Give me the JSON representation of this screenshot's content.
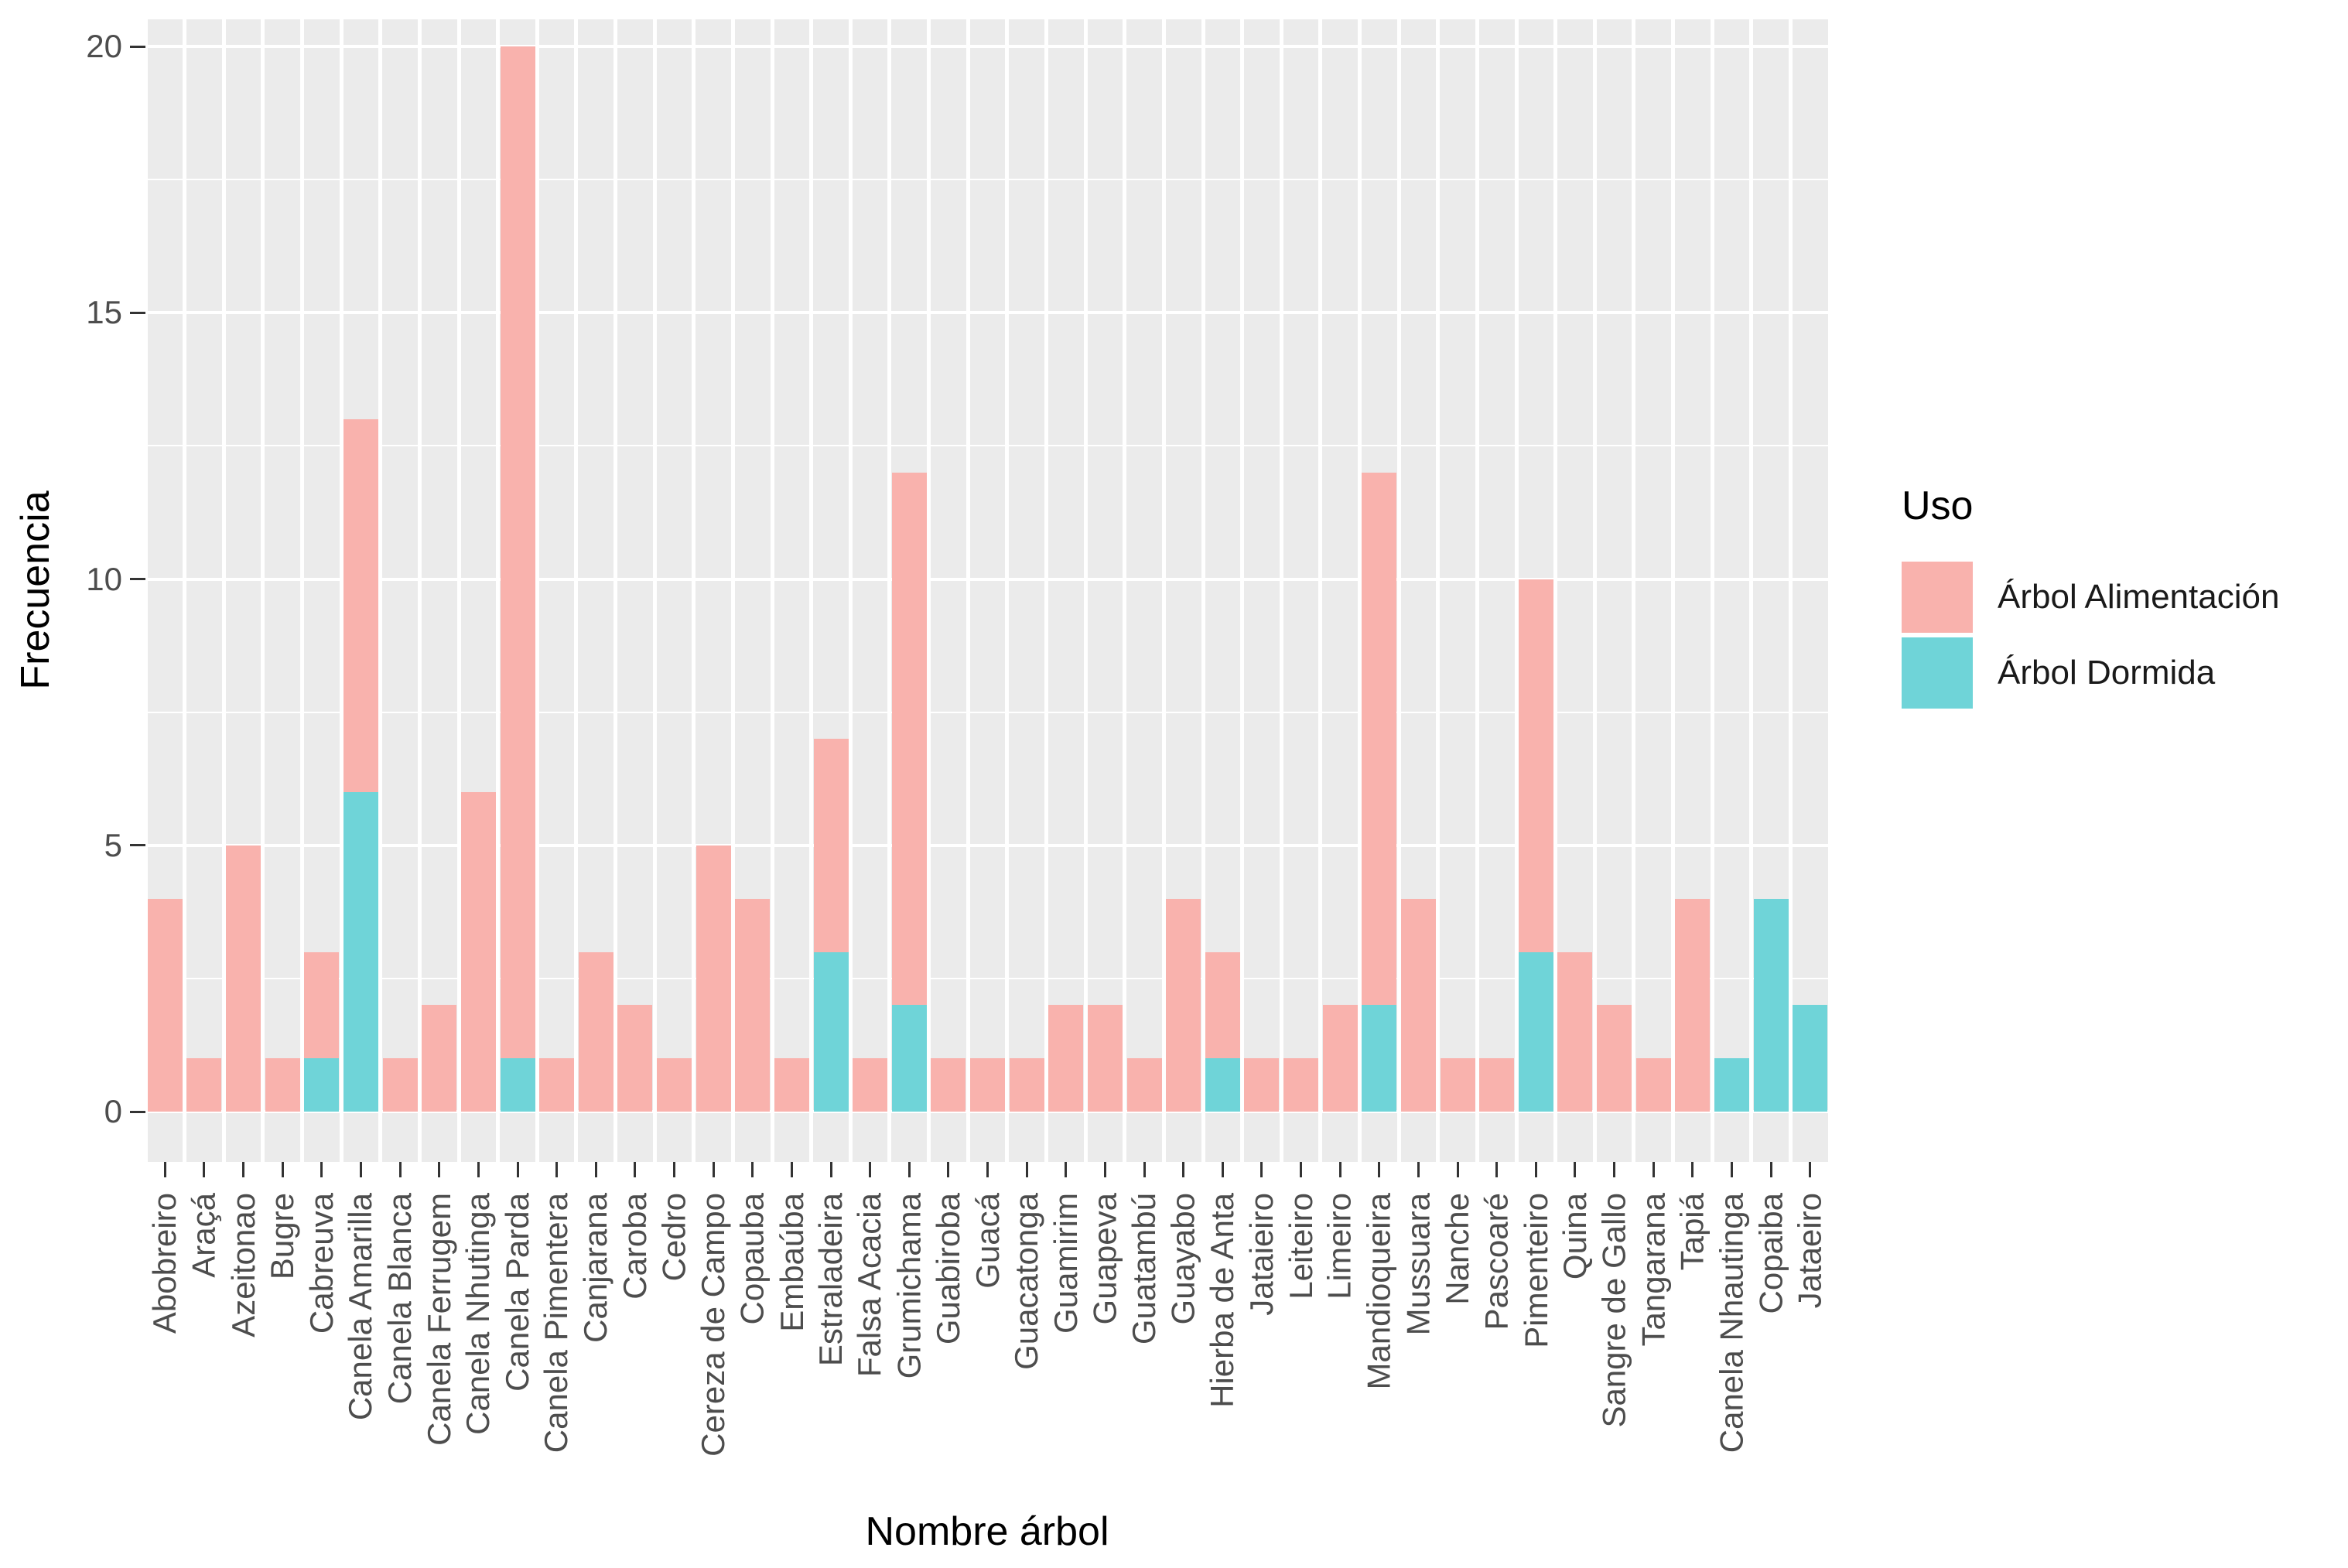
{
  "chart_data": {
    "type": "bar",
    "stacked": true,
    "xlabel": "Nombre árbol",
    "ylabel": "Frecuencia",
    "legend_title": "Uso",
    "legend_position": "right",
    "ylim": [
      0,
      20
    ],
    "yticks": [
      0,
      5,
      10,
      15,
      20
    ],
    "yminor": [
      2.5,
      7.5,
      12.5,
      17.5
    ],
    "grid": "white major+minor horizontal lines and vertical category separators on gray panel",
    "categories": [
      "Abobreiro",
      "Araçá",
      "Azeitonao",
      "Bugre",
      "Cabreuva",
      "Canela Amarilla",
      "Canela Blanca",
      "Canela Ferrugem",
      "Canela Nhutinga",
      "Canela Parda",
      "Canela Pimentera",
      "Canjarana",
      "Caroba",
      "Cedro",
      "Cereza de Campo",
      "Copauba",
      "Embaúba",
      "Estraladeira",
      "Falsa Acacia",
      "Grumichama",
      "Guabiroba",
      "Guacá",
      "Guacatonga",
      "Guamirim",
      "Guapeva",
      "Guatambú",
      "Guayabo",
      "Hierba de Anta",
      "Jataieiro",
      "Leiteiro",
      "Limeiro",
      "Mandioqueira",
      "Mussuara",
      "Nanche",
      "Pascoaré",
      "Pimenteiro",
      "Quina",
      "Sangre de Gallo",
      "Tangarana",
      "Tapiá",
      "Canela Nhautinga",
      "Copaiba",
      "Jataeiro"
    ],
    "series": [
      {
        "name": "Árbol Alimentación",
        "color": "#F9B2AD",
        "values": [
          4,
          1,
          5,
          1,
          2,
          7,
          1,
          2,
          6,
          19,
          1,
          3,
          2,
          1,
          5,
          4,
          1,
          4,
          1,
          10,
          1,
          1,
          1,
          2,
          2,
          1,
          4,
          2,
          1,
          1,
          2,
          10,
          4,
          1,
          1,
          7,
          3,
          2,
          1,
          4,
          0,
          0,
          0
        ]
      },
      {
        "name": "Árbol Dormida",
        "color": "#6FD4D8",
        "values": [
          0,
          0,
          0,
          0,
          1,
          6,
          0,
          0,
          0,
          1,
          0,
          0,
          0,
          0,
          0,
          0,
          0,
          3,
          0,
          2,
          0,
          0,
          0,
          0,
          0,
          0,
          0,
          1,
          0,
          0,
          0,
          2,
          0,
          0,
          0,
          3,
          0,
          0,
          0,
          0,
          1,
          4,
          2
        ]
      }
    ],
    "stack_order_bottom_to_top": [
      "Árbol Dormida",
      "Árbol Alimentación"
    ],
    "totals": [
      4,
      1,
      5,
      1,
      3,
      13,
      1,
      2,
      6,
      20,
      1,
      3,
      2,
      1,
      5,
      4,
      1,
      7,
      1,
      12,
      1,
      1,
      1,
      2,
      2,
      1,
      4,
      3,
      1,
      1,
      2,
      12,
      4,
      1,
      1,
      10,
      3,
      2,
      1,
      4,
      1,
      4,
      2
    ]
  },
  "colors": {
    "panel_background": "#EBEBEB",
    "gridline": "#FFFFFF",
    "tick_mark": "#333333",
    "tick_label": "#4D4D4D",
    "axis_title": "#000000",
    "alimentacion": "#F9B2AD",
    "dormida": "#6FD4D8"
  }
}
